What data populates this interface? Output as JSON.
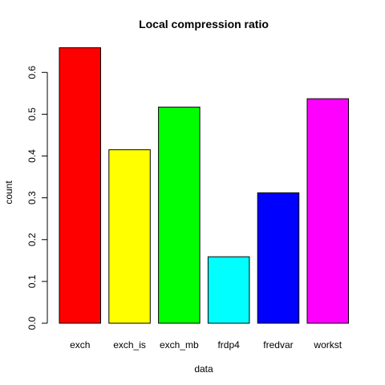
{
  "chart_data": {
    "type": "bar",
    "title": "Local compression ratio",
    "x_label": "data",
    "y_label": "count",
    "categories": [
      "exch",
      "exch_is",
      "exch_mb",
      "frdp4",
      "fredvar",
      "workst"
    ],
    "values": [
      0.659,
      0.415,
      0.517,
      0.159,
      0.312,
      0.537
    ],
    "colors": [
      "#ff0000",
      "#ffff00",
      "#00ff00",
      "#00ffff",
      "#0000ff",
      "#ff00ff"
    ],
    "ylim": [
      0,
      0.66
    ],
    "yticks": [
      0.0,
      0.1,
      0.2,
      0.3,
      0.4,
      0.5,
      0.6
    ],
    "grid": false
  }
}
